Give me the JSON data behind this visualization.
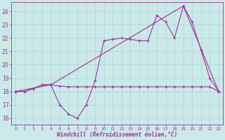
{
  "background_color": "#cce9e9",
  "grid_color": "#aad4d4",
  "line_color": "#993399",
  "xlabel": "Windchill (Refroidissement éolien,°C)",
  "xlim": [
    -0.5,
    23.5
  ],
  "ylim": [
    15.5,
    24.7
  ],
  "yticks": [
    16,
    17,
    18,
    19,
    20,
    21,
    22,
    23,
    24
  ],
  "xticks": [
    0,
    1,
    2,
    3,
    4,
    5,
    6,
    7,
    8,
    9,
    10,
    11,
    12,
    13,
    14,
    15,
    16,
    17,
    18,
    19,
    20,
    21,
    22,
    23
  ],
  "line1_x": [
    0,
    1,
    2,
    3,
    4,
    5,
    6,
    7,
    8,
    9,
    10,
    11,
    12,
    13,
    14,
    15,
    16,
    17,
    18,
    19,
    20,
    21,
    22,
    23
  ],
  "line1_y": [
    18.0,
    18.0,
    18.2,
    18.5,
    18.5,
    17.0,
    16.3,
    16.0,
    17.0,
    18.8,
    21.8,
    21.9,
    22.0,
    21.9,
    21.8,
    21.8,
    23.7,
    23.2,
    22.0,
    24.4,
    23.2,
    21.1,
    19.0,
    18.0
  ],
  "line2_x": [
    0,
    1,
    2,
    3,
    4,
    5,
    6,
    7,
    8,
    9,
    10,
    11,
    12,
    13,
    14,
    15,
    16,
    17,
    18,
    19,
    20,
    21,
    22,
    23
  ],
  "line2_y": [
    18.0,
    18.0,
    18.2,
    18.5,
    18.5,
    18.4,
    18.35,
    18.35,
    18.35,
    18.35,
    18.35,
    18.35,
    18.35,
    18.35,
    18.35,
    18.35,
    18.35,
    18.35,
    18.35,
    18.35,
    18.35,
    18.35,
    18.35,
    18.0
  ],
  "line3_x": [
    0,
    4,
    19,
    23
  ],
  "line3_y": [
    18.0,
    18.5,
    24.4,
    18.0
  ]
}
